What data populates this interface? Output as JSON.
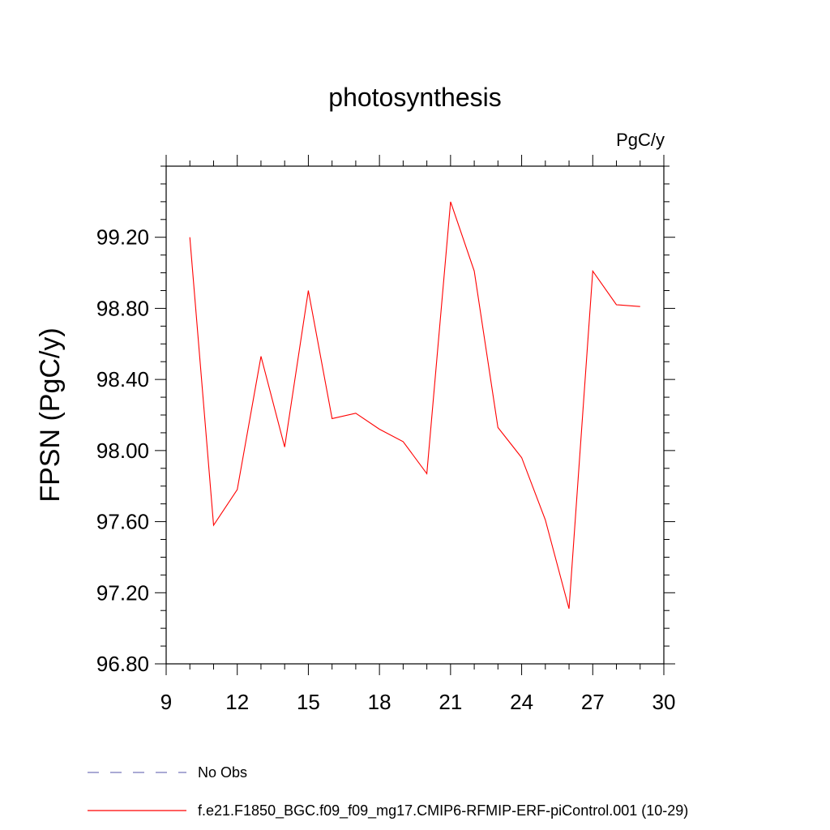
{
  "chart_data": {
    "type": "line",
    "title": "photosynthesis",
    "units": "PgC/y",
    "ylabel": "FPSN  (PgC/y)",
    "xlabel": "",
    "xlim": [
      9,
      30
    ],
    "ylim": [
      96.8,
      99.6
    ],
    "xticks": [
      9,
      12,
      15,
      18,
      21,
      24,
      27,
      30
    ],
    "xtick_labels": [
      "9",
      "12",
      "15",
      "18",
      "21",
      "24",
      "27",
      "30"
    ],
    "yticks": [
      96.8,
      97.2,
      97.6,
      98.0,
      98.4,
      98.8,
      99.2
    ],
    "ytick_labels": [
      "96.80",
      "97.20",
      "97.60",
      "98.00",
      "98.40",
      "98.80",
      "99.20"
    ],
    "grid": false,
    "legend_position": "bottom",
    "series": [
      {
        "name": "f.e21.F1850_BGC.f09_f09_mg17.CMIP6-RFMIP-ERF-piControl.001 (10-29)",
        "color": "#ff0000",
        "style": "solid",
        "x": [
          10,
          11,
          12,
          13,
          14,
          15,
          16,
          17,
          18,
          19,
          20,
          21,
          22,
          23,
          24,
          25,
          26,
          27,
          28,
          29
        ],
        "values": [
          99.2,
          97.58,
          97.78,
          98.53,
          98.02,
          98.9,
          98.18,
          98.21,
          98.12,
          98.05,
          97.87,
          99.4,
          99.01,
          98.13,
          97.96,
          97.61,
          97.11,
          99.01,
          98.82,
          98.81
        ]
      }
    ],
    "legend": [
      {
        "label": "No Obs",
        "color": "#7777bb",
        "style": "dashed"
      },
      {
        "label": "f.e21.F1850_BGC.f09_f09_mg17.CMIP6-RFMIP-ERF-piControl.001 (10-29)",
        "color": "#ff0000",
        "style": "solid"
      }
    ]
  }
}
